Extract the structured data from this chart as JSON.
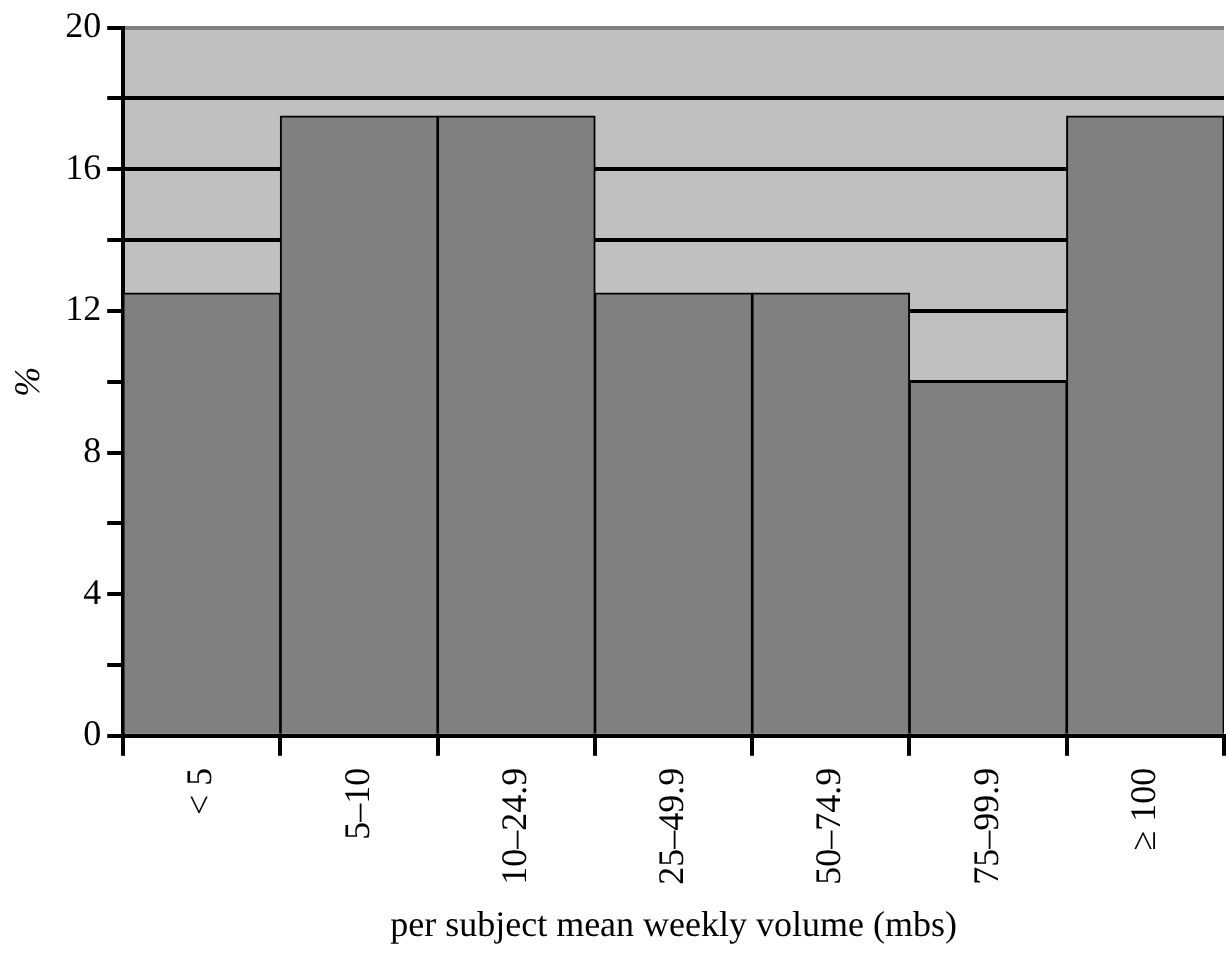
{
  "chart_data": {
    "type": "bar",
    "xlabel": "per subject mean weekly volume (mbs)",
    "ylabel": "%",
    "categories": [
      "< 5",
      "5–10",
      "10–24.9",
      "25–49.9",
      "50–74.9",
      "75–99.9",
      "≥ 100"
    ],
    "values": [
      12.5,
      17.5,
      17.5,
      12.5,
      12.5,
      10,
      17.5
    ],
    "color": "#808080",
    "ylim": [
      0,
      20
    ],
    "yticks": [
      0,
      {
        "value": 2,
        "label": null
      },
      4,
      {
        "value": 6,
        "label": null
      },
      8,
      {
        "value": 10,
        "label": null
      },
      12,
      {
        "value": 14,
        "label": null
      },
      16,
      {
        "value": 18,
        "label": null
      },
      20
    ],
    "grid": "y",
    "legend": false
  }
}
